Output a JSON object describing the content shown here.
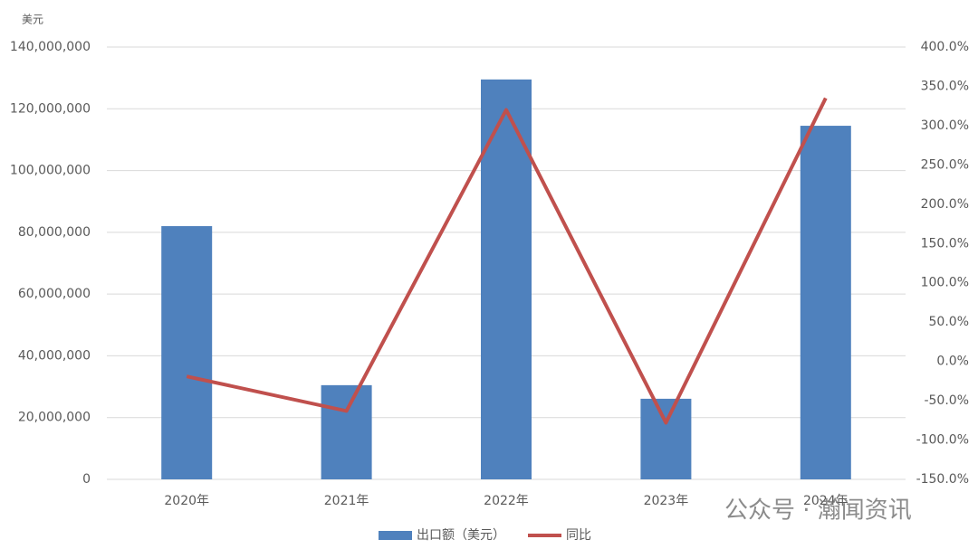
{
  "chart_data": {
    "type": "bar-line",
    "y_unit_label": "美元",
    "categories": [
      "2020年",
      "2021年",
      "2022年",
      "2023年",
      "2024年"
    ],
    "series": [
      {
        "name": "出口额（美元）",
        "type": "bar",
        "color": "#4f81bd",
        "values": [
          82000000,
          30500000,
          129500000,
          26100000,
          114500000
        ]
      },
      {
        "name": "同比",
        "type": "line",
        "axis": "y2",
        "color": "#c0504d",
        "values": [
          -19,
          -63,
          320,
          -78,
          335
        ]
      }
    ],
    "ylim": [
      0,
      140000000
    ],
    "yticks": [
      0,
      {
        "value": 20000000,
        "label": "20,000,000"
      },
      {
        "value": 40000000,
        "label": "40,000,000"
      },
      {
        "value": 60000000,
        "label": "60,000,000"
      },
      {
        "value": 80000000,
        "label": "80,000,000"
      },
      {
        "value": 100000000,
        "label": "100,000,000"
      },
      {
        "value": 120000000,
        "label": "120,000,000"
      },
      {
        "value": 140000000,
        "label": "140,000,000"
      }
    ],
    "y2lim": [
      -150,
      400
    ],
    "y2ticks": [
      {
        "value": -150,
        "label": "-150.0%"
      },
      {
        "value": -100,
        "label": "-100.0%"
      },
      {
        "value": -50,
        "label": "-50.0%"
      },
      {
        "value": 0,
        "label": "0.0%"
      },
      {
        "value": 50,
        "label": "50.0%"
      },
      {
        "value": 100,
        "label": "100.0%"
      },
      {
        "value": 150,
        "label": "150.0%"
      },
      {
        "value": 200,
        "label": "200.0%"
      },
      {
        "value": 250,
        "label": "250.0%"
      },
      {
        "value": 300,
        "label": "300.0%"
      },
      {
        "value": 350,
        "label": "350.0%"
      },
      {
        "value": 400,
        "label": "400.0%"
      }
    ],
    "grid": true,
    "legend": "bottom",
    "watermark": "公众号 · 瀚闻资讯"
  }
}
